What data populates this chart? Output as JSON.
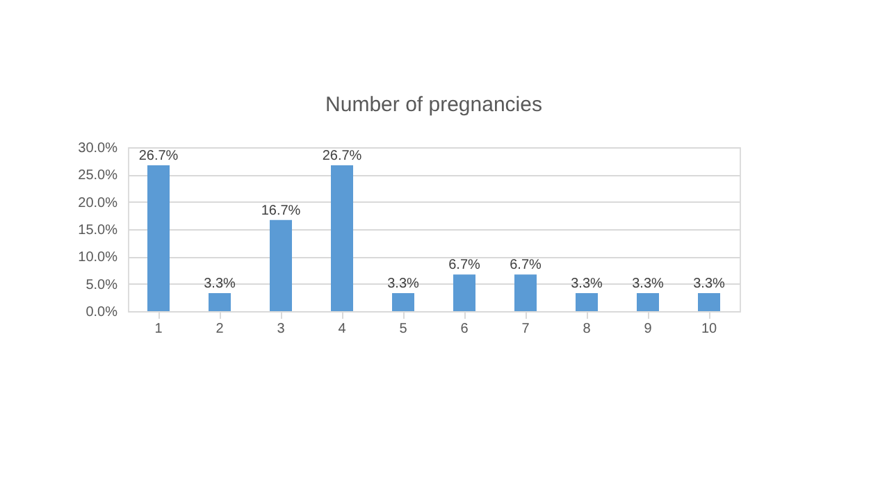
{
  "chart_data": {
    "type": "bar",
    "title": "Number of pregnancies",
    "categories": [
      "1",
      "2",
      "3",
      "4",
      "5",
      "6",
      "7",
      "8",
      "9",
      "10"
    ],
    "values": [
      26.7,
      3.3,
      16.7,
      26.7,
      3.3,
      6.7,
      6.7,
      3.3,
      3.3,
      3.3
    ],
    "value_labels": [
      "26.7%",
      "3.3%",
      "16.7%",
      "26.7%",
      "3.3%",
      "6.7%",
      "6.7%",
      "3.3%",
      "3.3%",
      "3.3%"
    ],
    "color": "#5b9bd5",
    "ylim": [
      0,
      30
    ],
    "yticks": [
      {
        "value": 0,
        "label": "0.0%"
      },
      {
        "value": 5,
        "label": "5.0%"
      },
      {
        "value": 10,
        "label": "10.0%"
      },
      {
        "value": 15,
        "label": "15.0%"
      },
      {
        "value": 20,
        "label": "20.0%"
      },
      {
        "value": 25,
        "label": "25.0%"
      },
      {
        "value": 30,
        "label": "30.0%"
      }
    ],
    "grid": "y"
  }
}
